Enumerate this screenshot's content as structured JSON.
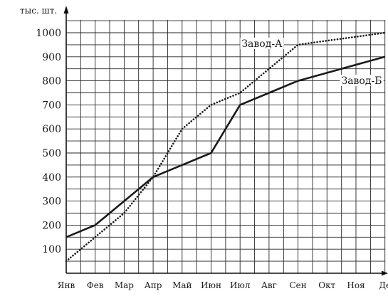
{
  "chart_data": {
    "type": "line",
    "ylabel": "тыс. шт.",
    "ylim": [
      0,
      1000
    ],
    "yticks": [
      100,
      200,
      300,
      400,
      500,
      600,
      700,
      800,
      900,
      1000
    ],
    "categories": [
      "Янв",
      "Фев",
      "Мар",
      "Апр",
      "Май",
      "Июн",
      "Июл",
      "Авг",
      "Сен",
      "Окт",
      "Ноя",
      "Де"
    ],
    "grid": true,
    "series": [
      {
        "name": "Завод-А",
        "style": "dotted",
        "color": "#1a1a1a",
        "values": [
          50,
          150,
          250,
          400,
          600,
          700,
          750,
          850,
          950,
          967,
          983,
          1000
        ]
      },
      {
        "name": "Завод-Б",
        "style": "solid",
        "color": "#1a1a1a",
        "values": [
          150,
          200,
          300,
          400,
          450,
          500,
          700,
          750,
          800,
          833,
          867,
          900
        ]
      }
    ]
  }
}
